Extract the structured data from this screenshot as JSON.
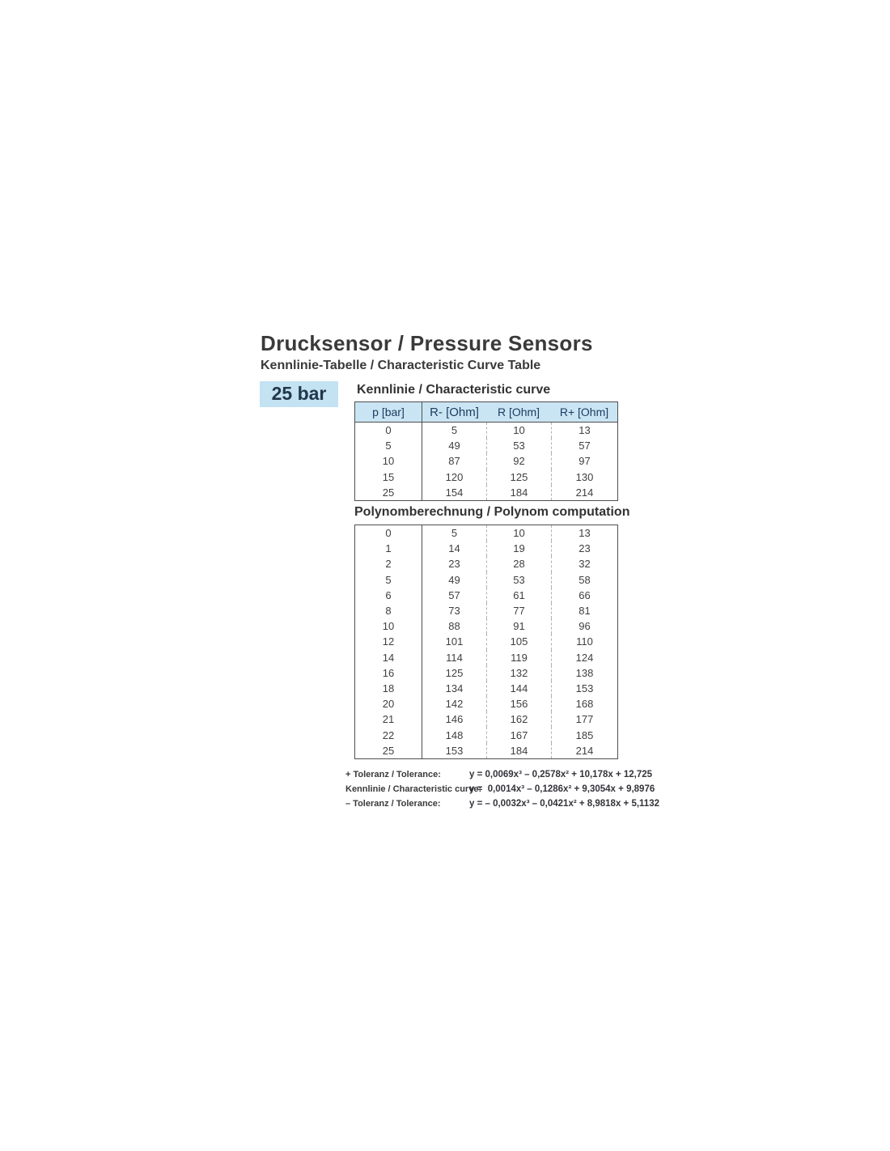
{
  "header": {
    "title": "Drucksensor / Pressure Sensors",
    "subtitle": "Kennlinie-Tabelle / Characteristic Curve Table"
  },
  "badge": {
    "label": "25 bar"
  },
  "colors": {
    "badge_bg": "#c3e2f2",
    "table_header_bg": "#c9e5f4",
    "table_header_text": "#1d3c60"
  },
  "kennlinie": {
    "heading": "Kennlinie / Characteristic curve",
    "columns": [
      "p [bar]",
      "R- [Ohm]",
      "R [Ohm]",
      "R+ [Ohm]"
    ],
    "rows": [
      [
        "0",
        "5",
        "10",
        "13"
      ],
      [
        "5",
        "49",
        "53",
        "57"
      ],
      [
        "10",
        "87",
        "92",
        "97"
      ],
      [
        "15",
        "120",
        "125",
        "130"
      ],
      [
        "25",
        "154",
        "184",
        "214"
      ]
    ]
  },
  "polynom": {
    "heading": "Polynomberechnung / Polynom computation",
    "rows": [
      [
        "0",
        "5",
        "10",
        "13"
      ],
      [
        "1",
        "14",
        "19",
        "23"
      ],
      [
        "2",
        "23",
        "28",
        "32"
      ],
      [
        "5",
        "49",
        "53",
        "58"
      ],
      [
        "6",
        "57",
        "61",
        "66"
      ],
      [
        "8",
        "73",
        "77",
        "81"
      ],
      [
        "10",
        "88",
        "91",
        "96"
      ],
      [
        "12",
        "101",
        "105",
        "110"
      ],
      [
        "14",
        "114",
        "119",
        "124"
      ],
      [
        "16",
        "125",
        "132",
        "138"
      ],
      [
        "18",
        "134",
        "144",
        "153"
      ],
      [
        "20",
        "142",
        "156",
        "168"
      ],
      [
        "21",
        "146",
        "162",
        "177"
      ],
      [
        "22",
        "148",
        "167",
        "185"
      ],
      [
        "25",
        "153",
        "184",
        "214"
      ]
    ]
  },
  "formulas": {
    "items": [
      {
        "label": "+ Toleranz / Tolerance:",
        "value": "y = 0,0069x³ – 0,2578x² + 10,178x + 12,725"
      },
      {
        "label": "Kennlinie / Characteristic curve:",
        "value": "y =  0,0014x³ – 0,1286x² + 9,3054x + 9,8976"
      },
      {
        "label": "– Toleranz / Tolerance:",
        "value": "y = – 0,0032x³ – 0,0421x² + 8,9818x + 5,1132"
      }
    ]
  }
}
